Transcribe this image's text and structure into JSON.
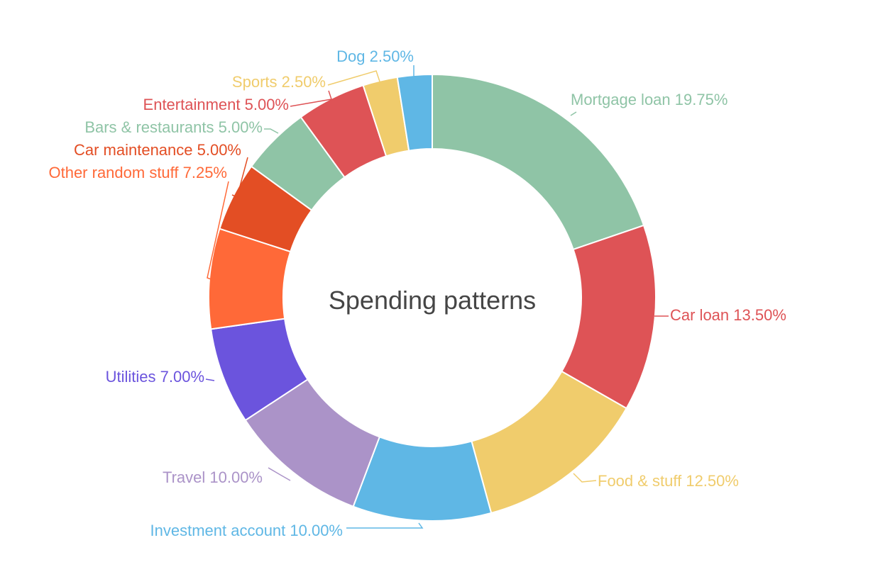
{
  "chart_data": {
    "type": "pie",
    "title": "Spending patterns",
    "donut": true,
    "slices": [
      {
        "label": "Mortgage loan",
        "value": 19.75,
        "display": "Mortgage loan 19.75%",
        "color": "#8fc4a6"
      },
      {
        "label": "Car loan",
        "value": 13.5,
        "display": "Car loan 13.50%",
        "color": "#de5356"
      },
      {
        "label": "Food & stuff",
        "value": 12.5,
        "display": "Food & stuff 12.50%",
        "color": "#f0cc6c"
      },
      {
        "label": "Investment account",
        "value": 10.0,
        "display": "Investment account 10.00%",
        "color": "#5fb7e5"
      },
      {
        "label": "Travel",
        "value": 10.0,
        "display": "Travel 10.00%",
        "color": "#ab93c8"
      },
      {
        "label": "Utilities",
        "value": 7.0,
        "display": "Utilities 7.00%",
        "color": "#6b54dd"
      },
      {
        "label": "Other random stuff",
        "value": 7.25,
        "display": "Other random stuff 7.25%",
        "color": "#ff6938"
      },
      {
        "label": "Car maintenance",
        "value": 5.0,
        "display": "Car maintenance 5.00%",
        "color": "#e34e24"
      },
      {
        "label": "Bars & restaurants",
        "value": 5.0,
        "display": "Bars & restaurants 5.00%",
        "color": "#8fc4a6"
      },
      {
        "label": "Entertainment",
        "value": 5.0,
        "display": "Entertainment 5.00%",
        "color": "#de5356"
      },
      {
        "label": "Sports",
        "value": 2.5,
        "display": "Sports 2.50%",
        "color": "#f0cc6c"
      },
      {
        "label": "Dog",
        "value": 2.5,
        "display": "Dog 2.50%",
        "color": "#5fb7e5"
      }
    ],
    "legend": "none"
  }
}
